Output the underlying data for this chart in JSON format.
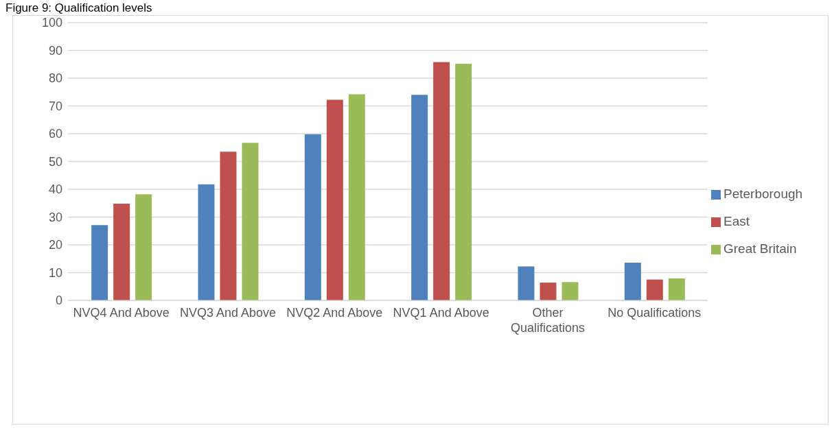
{
  "chart_data": {
    "type": "bar",
    "title": "Figure 9: Qualification levels",
    "categories": [
      "NVQ4 And Above",
      "NVQ3 And Above",
      "NVQ2 And Above",
      "NVQ1 And Above",
      "Other Qualifications",
      "No Qualifications"
    ],
    "series": [
      {
        "name": "Peterborough",
        "color": "#4f81bd",
        "values": [
          27.1,
          41.8,
          59.8,
          74.0,
          12.2,
          13.6
        ]
      },
      {
        "name": "East",
        "color": "#c0504d",
        "values": [
          34.8,
          53.5,
          72.2,
          85.8,
          6.4,
          7.5
        ]
      },
      {
        "name": "Great Britain",
        "color": "#9bbb59",
        "values": [
          38.2,
          56.7,
          74.2,
          85.2,
          6.6,
          7.9
        ]
      }
    ],
    "ylim": [
      0,
      100
    ],
    "yticks": [
      0,
      10,
      20,
      30,
      40,
      50,
      60,
      70,
      80,
      90,
      100
    ],
    "grid": "y",
    "legend": "right"
  }
}
